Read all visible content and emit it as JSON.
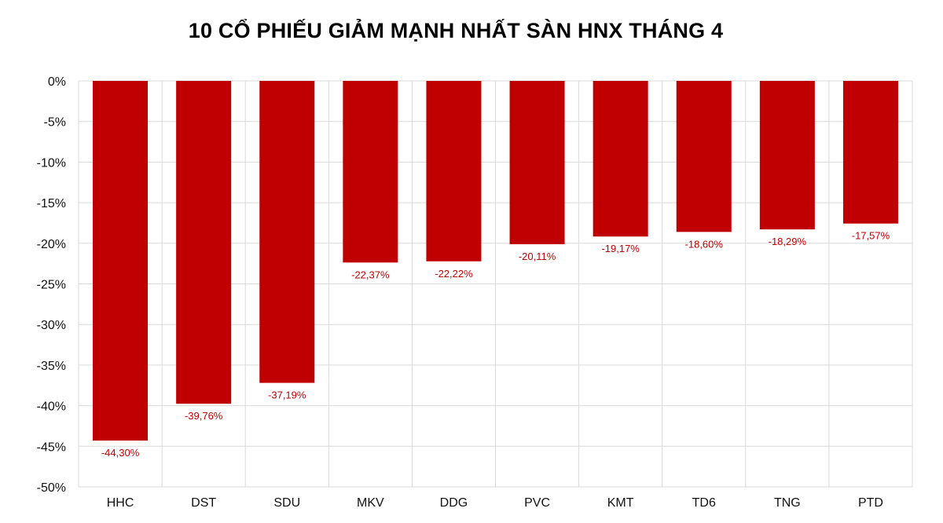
{
  "chart_data": {
    "type": "bar",
    "title": "10 CỔ PHIẾU GIẢM MẠNH NHẤT SÀN HNX THÁNG 4",
    "categories": [
      "HHC",
      "DST",
      "SDU",
      "MKV",
      "DDG",
      "PVC",
      "KMT",
      "TD6",
      "TNG",
      "PTD"
    ],
    "values": [
      -44.3,
      -39.76,
      -37.19,
      -22.37,
      -22.22,
      -20.11,
      -19.17,
      -18.6,
      -18.29,
      -17.57
    ],
    "data_labels": [
      "-44,30%",
      "-39,76%",
      "-37,19%",
      "-22,37%",
      "-22,22%",
      "-20,11%",
      "-19,17%",
      "-18,60%",
      "-18,29%",
      "-17,57%"
    ],
    "y_ticks": [
      0,
      -5,
      -10,
      -15,
      -20,
      -25,
      -30,
      -35,
      -40,
      -45,
      -50
    ],
    "y_tick_labels": [
      "0%",
      "-5%",
      "-10%",
      "-15%",
      "-20%",
      "-25%",
      "-30%",
      "-35%",
      "-40%",
      "-45%",
      "-50%"
    ],
    "ylim": [
      -50,
      0
    ],
    "xlabel": "",
    "ylabel": "",
    "grid": true,
    "legend": "none",
    "colors": {
      "bar": "#c00000",
      "data_label": "#c00000",
      "grid": "#d9d9d9"
    }
  }
}
